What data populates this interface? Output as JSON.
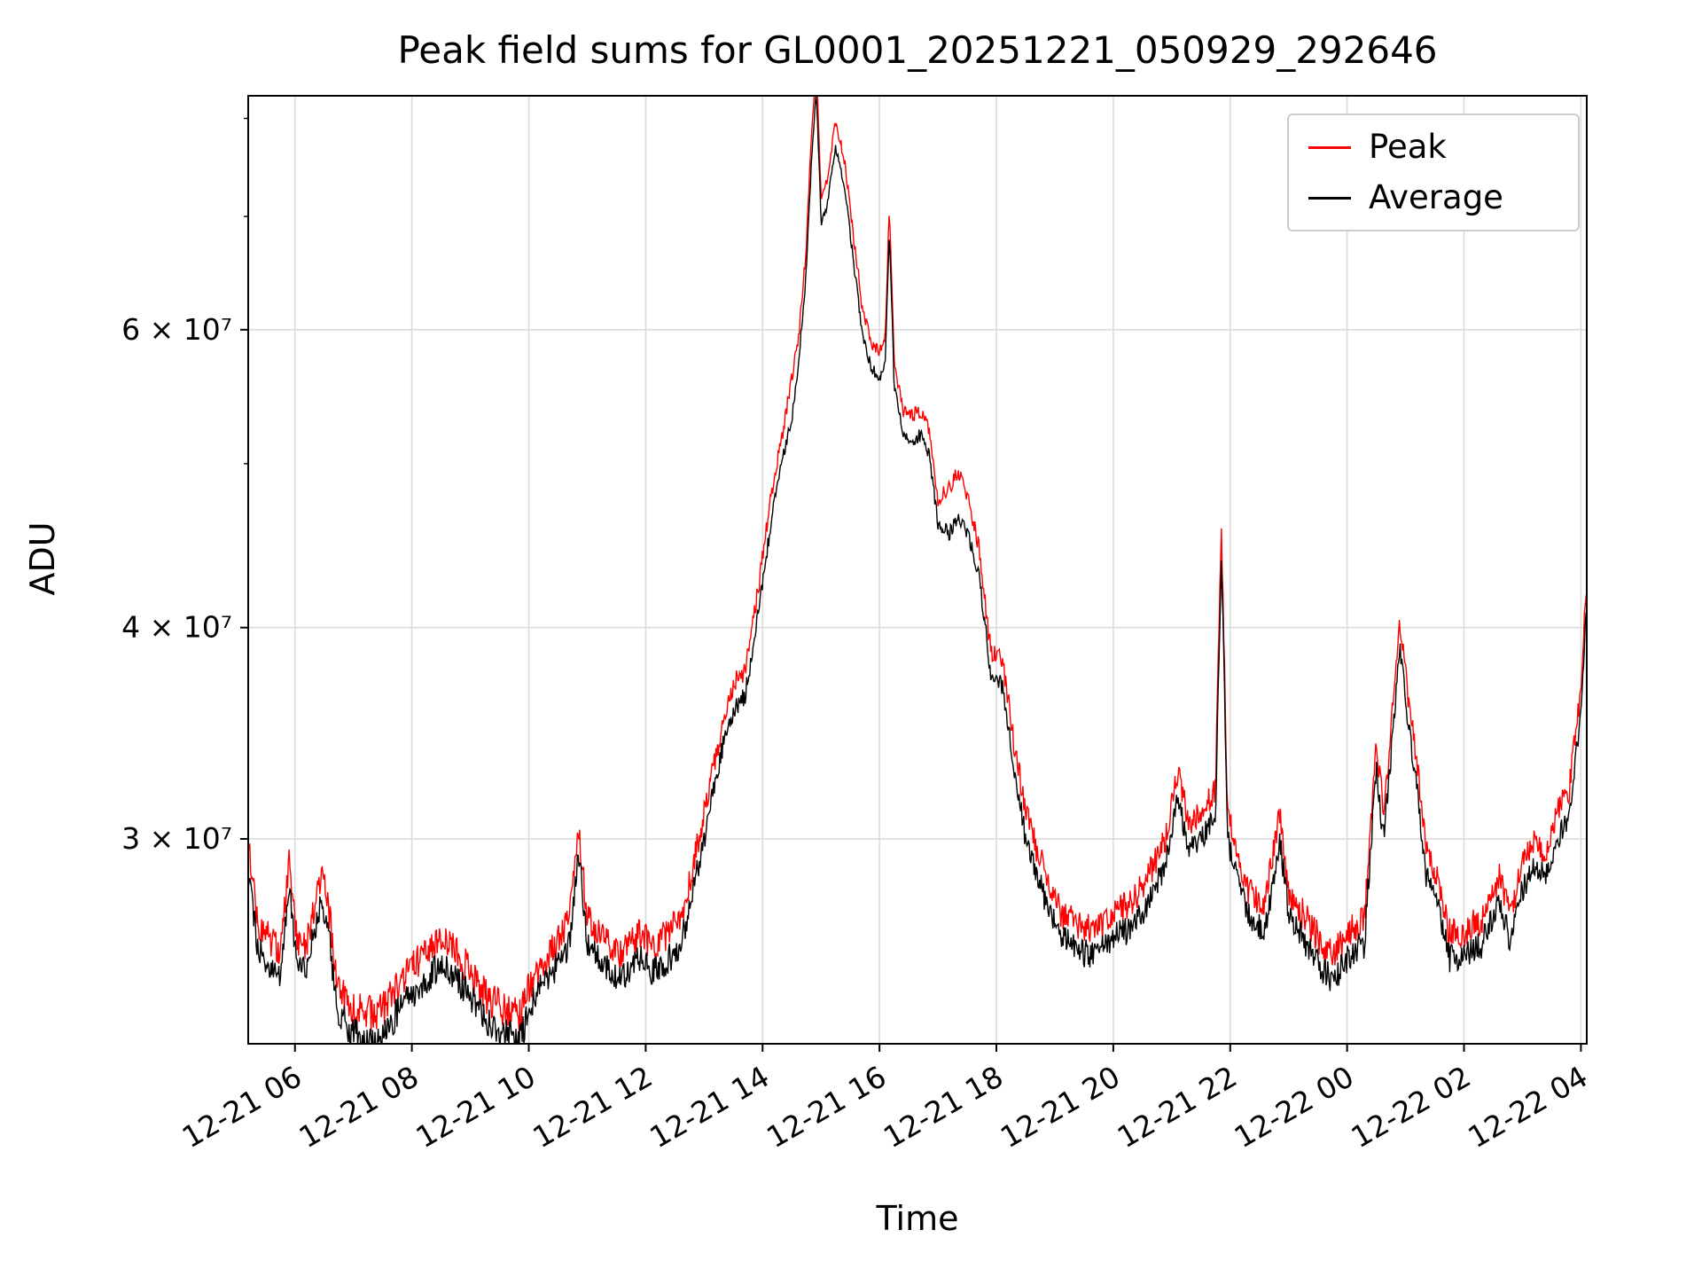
{
  "title": "Peak field sums for GL0001_20251221_050929_292646",
  "chart_data": {
    "type": "line",
    "title": "Peak field sums for GL0001_20251221_050929_292646",
    "xlabel": "Time",
    "ylabel": "ADU",
    "yscale": "log",
    "grid": true,
    "legend_position": "upper right",
    "ylim": [
      22700000.0,
      82500000.0
    ],
    "xlim_hours": [
      5.2,
      28.1
    ],
    "x_ticks": [
      {
        "hours": 6,
        "label": "12-21 06"
      },
      {
        "hours": 8,
        "label": "12-21 08"
      },
      {
        "hours": 10,
        "label": "12-21 10"
      },
      {
        "hours": 12,
        "label": "12-21 12"
      },
      {
        "hours": 14,
        "label": "12-21 14"
      },
      {
        "hours": 16,
        "label": "12-21 16"
      },
      {
        "hours": 18,
        "label": "12-21 18"
      },
      {
        "hours": 20,
        "label": "12-21 20"
      },
      {
        "hours": 22,
        "label": "12-21 22"
      },
      {
        "hours": 24,
        "label": "12-22 00"
      },
      {
        "hours": 26,
        "label": "12-22 02"
      },
      {
        "hours": 28,
        "label": "12-22 04"
      }
    ],
    "y_ticks": [
      {
        "value": 30000000.0,
        "label": "3 × 10⁷"
      },
      {
        "value": 40000000.0,
        "label": "4 × 10⁷"
      },
      {
        "value": 60000000.0,
        "label": "6 × 10⁷"
      }
    ],
    "y_minor_ticks": [
      50000000.0,
      70000000.0,
      80000000.0
    ],
    "legend": [
      {
        "name": "Peak",
        "color": "#ff0000"
      },
      {
        "name": "Average",
        "color": "#000000"
      }
    ],
    "x_hours": [
      5.22,
      5.35,
      5.5,
      5.75,
      5.9,
      6.05,
      6.2,
      6.45,
      6.55,
      6.7,
      6.9,
      7.2,
      7.5,
      7.8,
      8.1,
      8.45,
      8.7,
      9.0,
      9.3,
      9.6,
      9.85,
      10.1,
      10.4,
      10.7,
      10.85,
      11.0,
      11.3,
      11.6,
      11.9,
      12.1,
      12.4,
      12.6,
      12.8,
      13.0,
      13.2,
      13.4,
      13.55,
      13.7,
      13.85,
      14.0,
      14.2,
      14.35,
      14.5,
      14.62,
      14.75,
      14.85,
      14.92,
      15.0,
      15.1,
      15.25,
      15.4,
      15.55,
      15.7,
      15.85,
      16.0,
      16.1,
      16.17,
      16.25,
      16.4,
      16.55,
      16.7,
      16.85,
      17.0,
      17.2,
      17.35,
      17.5,
      17.7,
      17.9,
      18.1,
      18.3,
      18.5,
      18.7,
      18.9,
      19.1,
      19.4,
      19.7,
      20.0,
      20.3,
      20.6,
      20.9,
      21.1,
      21.3,
      21.5,
      21.75,
      21.85,
      21.95,
      22.1,
      22.3,
      22.6,
      22.85,
      23.0,
      23.3,
      23.6,
      23.8,
      24.0,
      24.3,
      24.5,
      24.62,
      24.75,
      24.9,
      25.05,
      25.2,
      25.35,
      25.55,
      25.75,
      26.0,
      26.3,
      26.6,
      26.8,
      27.0,
      27.2,
      27.4,
      27.6,
      27.8,
      28.0,
      28.08
    ],
    "series": [
      {
        "name": "Peak",
        "color": "#ff0000",
        "values": [
          29500000.0,
          26900000.0,
          26400000.0,
          25700000.0,
          29000000.0,
          25900000.0,
          26100000.0,
          28500000.0,
          27900000.0,
          24800000.0,
          24000000.0,
          23600000.0,
          23800000.0,
          24600000.0,
          25400000.0,
          26100000.0,
          25900000.0,
          25000000.0,
          24100000.0,
          23800000.0,
          23600000.0,
          25000000.0,
          25900000.0,
          26900000.0,
          30500000.0,
          26900000.0,
          26100000.0,
          25700000.0,
          26400000.0,
          25900000.0,
          26400000.0,
          26900000.0,
          28800000.0,
          31100000.0,
          33600000.0,
          36200000.0,
          37300000.0,
          37800000.0,
          40400000.0,
          44000000.0,
          49200000.0,
          52300000.0,
          56200000.0,
          59500000.0,
          67300000.0,
          79700000.0,
          85900000.0,
          71900000.0,
          73500000.0,
          79700000.0,
          75600000.0,
          68300000.0,
          62100000.0,
          59000000.0,
          58200000.0,
          59500000.0,
          70900000.0,
          57400000.0,
          53800000.0,
          53300000.0,
          53800000.0,
          52300000.0,
          47600000.0,
          48500000.0,
          49500000.0,
          48000000.0,
          44500000.0,
          38800000.0,
          38300000.0,
          34200000.0,
          31100000.0,
          29500000.0,
          28200000.0,
          27100000.0,
          26700000.0,
          26400000.0,
          27200000.0,
          27400000.0,
          28500000.0,
          30000000.0,
          32900000.0,
          30500000.0,
          31100000.0,
          32100000.0,
          45500000.0,
          31100000.0,
          29500000.0,
          27900000.0,
          27400000.0,
          31100000.0,
          27900000.0,
          26900000.0,
          25900000.0,
          25700000.0,
          26400000.0,
          26900000.0,
          34200000.0,
          31100000.0,
          34700000.0,
          40400000.0,
          36200000.0,
          33100000.0,
          29500000.0,
          28500000.0,
          26400000.0,
          26400000.0,
          26900000.0,
          28500000.0,
          26900000.0,
          29000000.0,
          30000000.0,
          29500000.0,
          31100000.0,
          32100000.0,
          36700000.0,
          41900000.0
        ]
      },
      {
        "name": "Average",
        "color": "#000000",
        "values": [
          28500000.0,
          26000000.0,
          25500000.0,
          24800000.0,
          28000000.0,
          25000000.0,
          25200000.0,
          27500000.0,
          27000000.0,
          24000000.0,
          23200000.0,
          22800000.0,
          23000000.0,
          23800000.0,
          24500000.0,
          25200000.0,
          25000000.0,
          24200000.0,
          23300000.0,
          23000000.0,
          22800000.0,
          24200000.0,
          25000000.0,
          26000000.0,
          29500000.0,
          26000000.0,
          25200000.0,
          24800000.0,
          25500000.0,
          25000000.0,
          25500000.0,
          26000000.0,
          27800000.0,
          30000000.0,
          32500000.0,
          35000000.0,
          36000000.0,
          36500000.0,
          39000000.0,
          42500000.0,
          47500000.0,
          50500000.0,
          53000000.0,
          57500000.0,
          65000000.0,
          77000000.0,
          83000000.0,
          69500000.0,
          71000000.0,
          77000000.0,
          73000000.0,
          66000000.0,
          60000000.0,
          57000000.0,
          56200000.0,
          57500000.0,
          68500000.0,
          55500000.0,
          52000000.0,
          51500000.0,
          52000000.0,
          50500000.0,
          46000000.0,
          45500000.0,
          46500000.0,
          45500000.0,
          43000000.0,
          37500000.0,
          37000000.0,
          33000000.0,
          30000000.0,
          28500000.0,
          27200000.0,
          26200000.0,
          25800000.0,
          25500000.0,
          26300000.0,
          26500000.0,
          27500000.0,
          29000000.0,
          31800000.0,
          29500000.0,
          30000000.0,
          31000000.0,
          44000000.0,
          30000000.0,
          28500000.0,
          27000000.0,
          26500000.0,
          30000000.0,
          27000000.0,
          26000000.0,
          25000000.0,
          24800000.0,
          25500000.0,
          26000000.0,
          33000000.0,
          30000000.0,
          33500000.0,
          39000000.0,
          35000000.0,
          32000000.0,
          28500000.0,
          27500000.0,
          25500000.0,
          25500000.0,
          26000000.0,
          27500000.0,
          26000000.0,
          28000000.0,
          29000000.0,
          28500000.0,
          30000000.0,
          31000000.0,
          35500000.0,
          40500000.0
        ]
      }
    ],
    "noise": {
      "seed_peak": 7,
      "seed_average": 13,
      "amp_peak": 0.021,
      "amp_average": 0.018,
      "ref_value": 28000000.0,
      "exponent": 1.1,
      "amp_cap": 1.25,
      "samples": 1700
    },
    "colors": {
      "grid": "#dcdcdc",
      "spine": "#000000",
      "background": "#ffffff"
    }
  }
}
